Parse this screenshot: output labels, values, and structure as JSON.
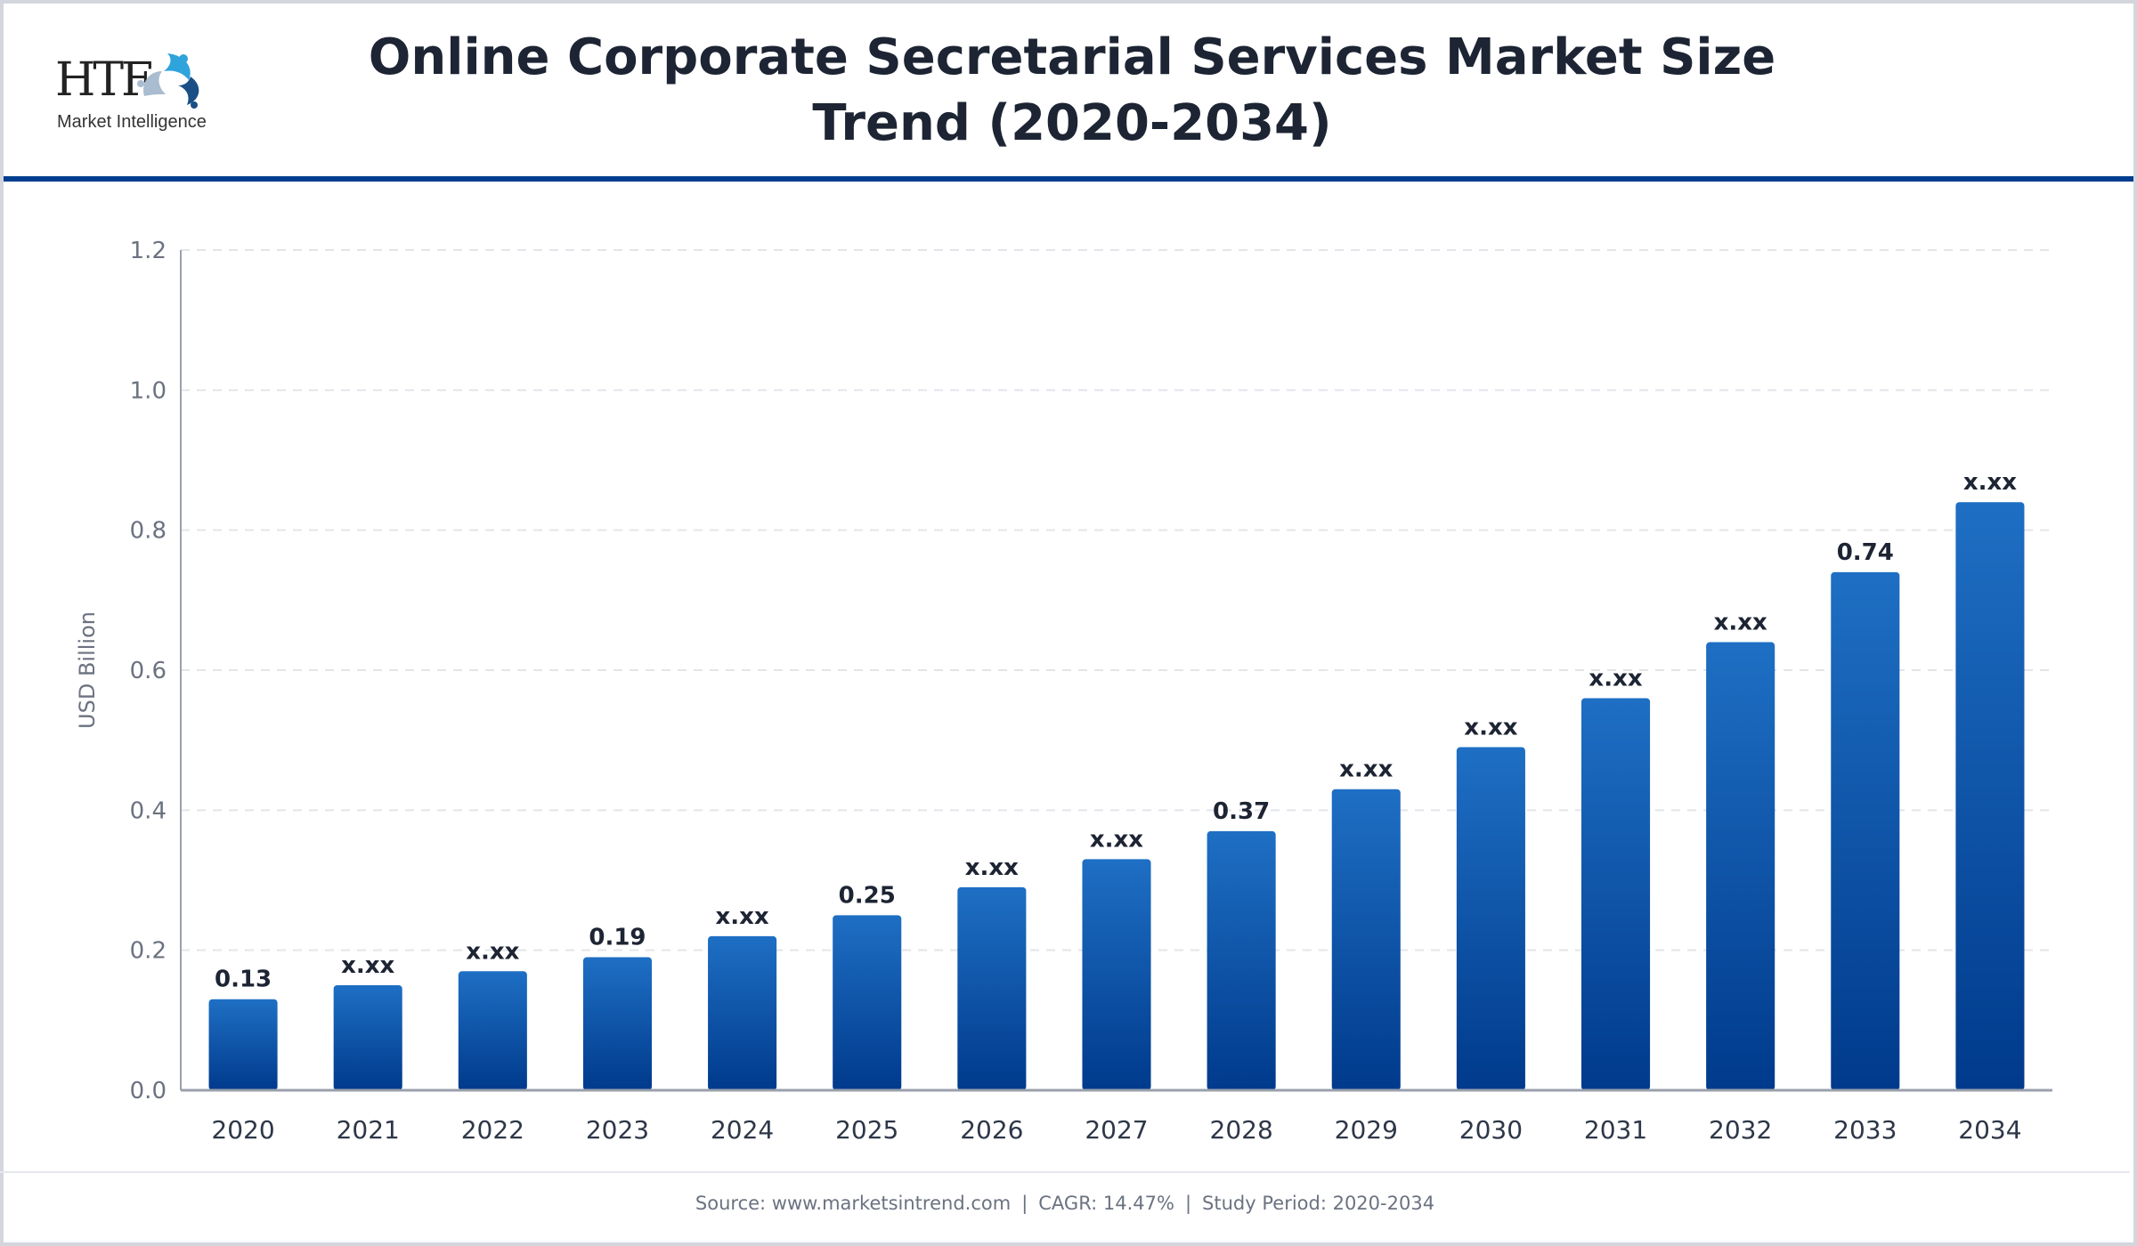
{
  "header": {
    "logo_text": "HTF",
    "logo_subtext": "Market Intelligence",
    "title_line1": "Online Corporate Secretarial Services Market Size",
    "title_line2": "Trend (2020-2034)"
  },
  "footer": {
    "source": "Source: www.marketsintrend.com",
    "cagr": "CAGR: 14.47%",
    "study_period": "Study Period: 2020-2034",
    "separator": "|"
  },
  "colors": {
    "accent": "#003d8f",
    "bar_top": "#1e6fc4",
    "bar_bottom": "#003a8c",
    "text_dark": "#1d2433",
    "text_muted": "#6b7280"
  },
  "chart_data": {
    "type": "bar",
    "title": "Online Corporate Secretarial Services Market Size Trend (2020-2034)",
    "xlabel": "",
    "ylabel": "USD Billion",
    "ylim": [
      0,
      1.2
    ],
    "yticks": [
      "0.0",
      "0.2",
      "0.4",
      "0.6",
      "0.8",
      "1.0",
      "1.2"
    ],
    "grid": "horizontal dashed",
    "legend": "none",
    "categories": [
      "2020",
      "2021",
      "2022",
      "2023",
      "2024",
      "2025",
      "2026",
      "2027",
      "2028",
      "2029",
      "2030",
      "2031",
      "2032",
      "2033",
      "2034"
    ],
    "values": [
      0.13,
      0.15,
      0.17,
      0.19,
      0.22,
      0.25,
      0.29,
      0.33,
      0.37,
      0.43,
      0.49,
      0.56,
      0.64,
      0.74,
      0.84
    ],
    "data_labels": [
      "0.13",
      "x.xx",
      "x.xx",
      "0.19",
      "x.xx",
      "0.25",
      "x.xx",
      "x.xx",
      "0.37",
      "x.xx",
      "x.xx",
      "x.xx",
      "x.xx",
      "0.74",
      "x.xx"
    ]
  }
}
